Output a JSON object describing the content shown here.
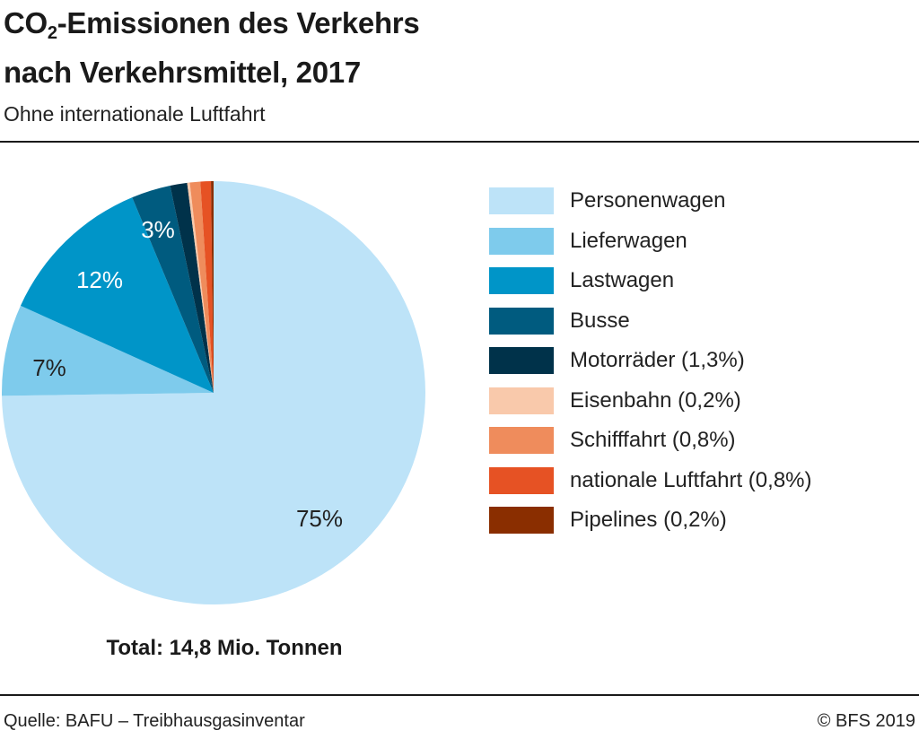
{
  "header": {
    "title_prefix": "CO",
    "title_sub": "2",
    "title_line1_rest": "-Emissionen des Verkehrs",
    "title_line2": "nach Verkehrsmittel, 2017",
    "subtitle": "Ohne internationale Luftfahrt"
  },
  "chart_data": {
    "type": "pie",
    "title": "CO2-Emissionen des Verkehrs nach Verkehrsmittel, 2017",
    "subtitle": "Ohne internationale Luftfahrt",
    "legend_position": "right",
    "start": "12 o'clock",
    "direction": "clockwise",
    "slices": [
      {
        "name": "Personenwagen",
        "value": 75,
        "label": "75%",
        "legend": "Personenwagen",
        "color": "#bde3f8",
        "label_color": "#222222"
      },
      {
        "name": "Lieferwagen",
        "value": 7,
        "label": "7%",
        "legend": "Lieferwagen",
        "color": "#7ecbec",
        "label_color": "#222222"
      },
      {
        "name": "Lastwagen",
        "value": 12,
        "label": "12%",
        "legend": "Lastwagen",
        "color": "#0095c8",
        "label_color": "#ffffff"
      },
      {
        "name": "Busse",
        "value": 3,
        "label": "3%",
        "legend": "Busse",
        "color": "#005b7f",
        "label_color": "#ffffff"
      },
      {
        "name": "Motorräder",
        "value": 1.3,
        "label": "",
        "legend": "Motorräder (1,3%)",
        "color": "#00324a"
      },
      {
        "name": "Eisenbahn",
        "value": 0.2,
        "label": "",
        "legend": "Eisenbahn (0,2%)",
        "color": "#f9c9ab"
      },
      {
        "name": "Schifffahrt",
        "value": 0.8,
        "label": "",
        "legend": "Schifffahrt (0,8%)",
        "color": "#ef8c5c"
      },
      {
        "name": "nationale Luftfahrt",
        "value": 0.8,
        "label": "",
        "legend": "nationale Luftfahrt (0,8%)",
        "color": "#e65224"
      },
      {
        "name": "Pipelines",
        "value": 0.2,
        "label": "",
        "legend": "Pipelines (0,2%)",
        "color": "#8a2e00"
      }
    ],
    "total_label": "Total: 14,8 Mio. Tonnen"
  },
  "footer": {
    "source": "Quelle: BAFU – Treibhausgasinventar",
    "copyright": "© BFS 2019"
  }
}
